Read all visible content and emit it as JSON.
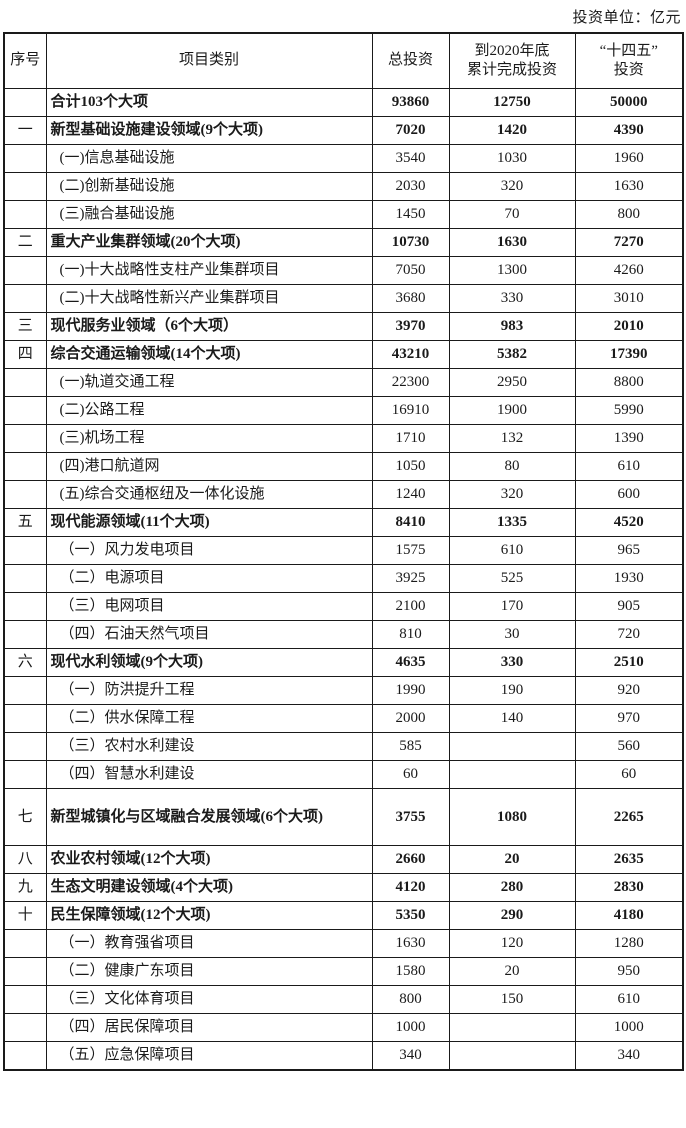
{
  "page": {
    "unit_label": "投资单位：亿元"
  },
  "table": {
    "headers": {
      "no": "序号",
      "category": "项目类别",
      "total": "总投资",
      "by2020": "到2020年底\n累计完成投资",
      "plan": "“十四五”\n投资"
    },
    "rows": [
      {
        "no": "",
        "category": "合计103个大项",
        "total": "93860",
        "by2020": "12750",
        "plan": "50000",
        "bold": true
      },
      {
        "no": "一",
        "category": "新型基础设施建设领域(9个大项)",
        "total": "7020",
        "by2020": "1420",
        "plan": "4390",
        "bold": true
      },
      {
        "no": "",
        "category": "(一)信息基础设施",
        "total": "3540",
        "by2020": "1030",
        "plan": "1960",
        "indent": true
      },
      {
        "no": "",
        "category": "(二)创新基础设施",
        "total": "2030",
        "by2020": "320",
        "plan": "1630",
        "indent": true
      },
      {
        "no": "",
        "category": "(三)融合基础设施",
        "total": "1450",
        "by2020": "70",
        "plan": "800",
        "indent": true
      },
      {
        "no": "二",
        "category": "重大产业集群领域(20个大项)",
        "total": "10730",
        "by2020": "1630",
        "plan": "7270",
        "bold": true
      },
      {
        "no": "",
        "category": "(一)十大战略性支柱产业集群项目",
        "total": "7050",
        "by2020": "1300",
        "plan": "4260",
        "indent": true
      },
      {
        "no": "",
        "category": "(二)十大战略性新兴产业集群项目",
        "total": "3680",
        "by2020": "330",
        "plan": "3010",
        "indent": true
      },
      {
        "no": "三",
        "category": "现代服务业领域（6个大项）",
        "total": "3970",
        "by2020": "983",
        "plan": "2010",
        "bold": true
      },
      {
        "no": "四",
        "category": "综合交通运输领域(14个大项)",
        "total": "43210",
        "by2020": "5382",
        "plan": "17390",
        "bold": true
      },
      {
        "no": "",
        "category": "(一)轨道交通工程",
        "total": "22300",
        "by2020": "2950",
        "plan": "8800",
        "indent": true
      },
      {
        "no": "",
        "category": "(二)公路工程",
        "total": "16910",
        "by2020": "1900",
        "plan": "5990",
        "indent": true
      },
      {
        "no": "",
        "category": "(三)机场工程",
        "total": "1710",
        "by2020": "132",
        "plan": "1390",
        "indent": true
      },
      {
        "no": "",
        "category": "(四)港口航道网",
        "total": "1050",
        "by2020": "80",
        "plan": "610",
        "indent": true
      },
      {
        "no": "",
        "category": "(五)综合交通枢纽及一体化设施",
        "total": "1240",
        "by2020": "320",
        "plan": "600",
        "indent": true
      },
      {
        "no": "五",
        "category": "现代能源领域(11个大项)",
        "total": "8410",
        "by2020": "1335",
        "plan": "4520",
        "bold": true
      },
      {
        "no": "",
        "category": "（一）风力发电项目",
        "total": "1575",
        "by2020": "610",
        "plan": "965",
        "indent": true
      },
      {
        "no": "",
        "category": "（二）电源项目",
        "total": "3925",
        "by2020": "525",
        "plan": "1930",
        "indent": true
      },
      {
        "no": "",
        "category": "（三）电网项目",
        "total": "2100",
        "by2020": "170",
        "plan": "905",
        "indent": true
      },
      {
        "no": "",
        "category": "（四）石油天然气项目",
        "total": "810",
        "by2020": "30",
        "plan": "720",
        "indent": true
      },
      {
        "no": "六",
        "category": "现代水利领域(9个大项)",
        "total": "4635",
        "by2020": "330",
        "plan": "2510",
        "bold": true
      },
      {
        "no": "",
        "category": "（一）防洪提升工程",
        "total": "1990",
        "by2020": "190",
        "plan": "920",
        "indent": true
      },
      {
        "no": "",
        "category": "（二）供水保障工程",
        "total": "2000",
        "by2020": "140",
        "plan": "970",
        "indent": true
      },
      {
        "no": "",
        "category": "（三）农村水利建设",
        "total": "585",
        "by2020": "",
        "plan": "560",
        "indent": true
      },
      {
        "no": "",
        "category": "（四）智慧水利建设",
        "total": "60",
        "by2020": "",
        "plan": "60",
        "indent": true
      },
      {
        "no": "七",
        "category": "新型城镇化与区域融合发展领域(6个大项)",
        "total": "3755",
        "by2020": "1080",
        "plan": "2265",
        "bold": true,
        "tall": true
      },
      {
        "no": "八",
        "category": "农业农村领域(12个大项)",
        "total": "2660",
        "by2020": "20",
        "plan": "2635",
        "bold": true
      },
      {
        "no": "九",
        "category": "生态文明建设领域(4个大项)",
        "total": "4120",
        "by2020": "280",
        "plan": "2830",
        "bold": true
      },
      {
        "no": "十",
        "category": "民生保障领域(12个大项)",
        "total": "5350",
        "by2020": "290",
        "plan": "4180",
        "bold": true
      },
      {
        "no": "",
        "category": "（一）教育强省项目",
        "total": "1630",
        "by2020": "120",
        "plan": "1280",
        "indent": true
      },
      {
        "no": "",
        "category": "（二）健康广东项目",
        "total": "1580",
        "by2020": "20",
        "plan": "950",
        "indent": true
      },
      {
        "no": "",
        "category": "（三）文化体育项目",
        "total": "800",
        "by2020": "150",
        "plan": "610",
        "indent": true
      },
      {
        "no": "",
        "category": "（四）居民保障项目",
        "total": "1000",
        "by2020": "",
        "plan": "1000",
        "indent": true
      },
      {
        "no": "",
        "category": "（五）应急保障项目",
        "total": "340",
        "by2020": "",
        "plan": "340",
        "indent": true
      }
    ]
  }
}
